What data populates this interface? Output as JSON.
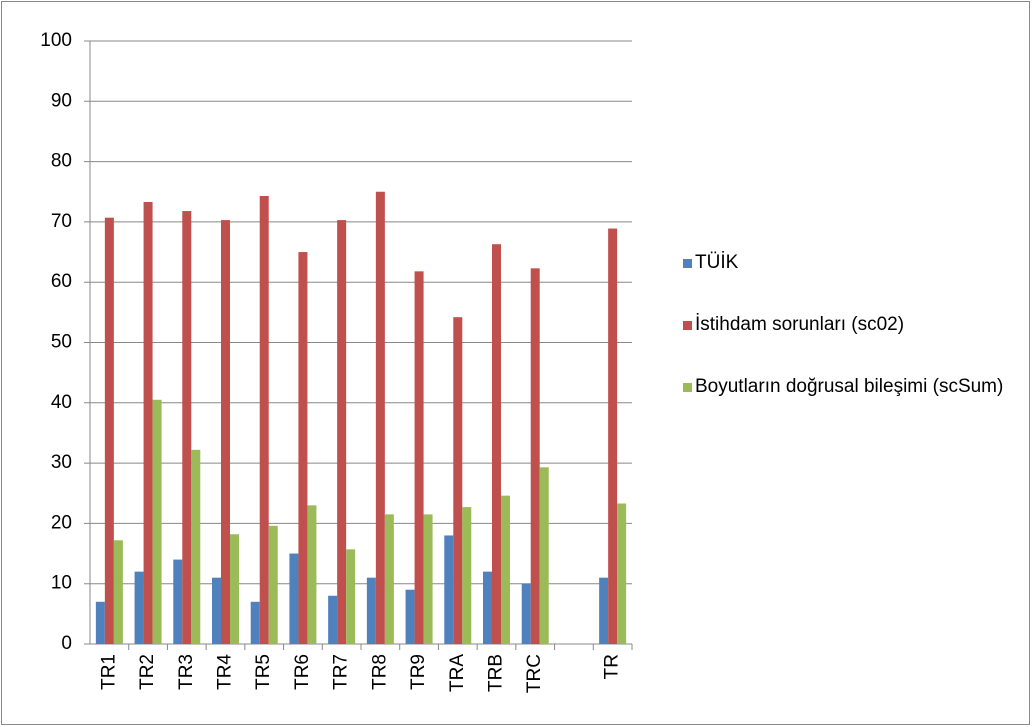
{
  "chart_data": {
    "type": "bar",
    "categories": [
      "TR1",
      "TR2",
      "TR3",
      "TR4",
      "TR5",
      "TR6",
      "TR7",
      "TR8",
      "TR9",
      "TRA",
      "TRB",
      "TRC",
      null,
      "TR"
    ],
    "series": [
      {
        "name": "TÜİK",
        "color": "#4f81bd",
        "values": [
          7,
          12,
          14,
          11,
          7,
          15,
          8,
          11,
          9,
          18,
          12,
          10,
          null,
          11
        ]
      },
      {
        "name": "İstihdam sorunları (sc02)",
        "color": "#c0504d",
        "values": [
          70.7,
          73.3,
          71.8,
          70.3,
          74.3,
          65,
          70.3,
          75,
          61.8,
          54.2,
          66.3,
          62.3,
          null,
          68.9
        ]
      },
      {
        "name": "Boyutların doğrusal bileşimi (scSum)",
        "color": "#9bbb59",
        "values": [
          17.2,
          40.5,
          32.2,
          18.2,
          19.6,
          23,
          15.7,
          21.5,
          21.5,
          22.7,
          24.6,
          29.3,
          null,
          23.3
        ]
      }
    ],
    "ylim": [
      0,
      100
    ],
    "yticks": [
      0,
      10,
      20,
      30,
      40,
      50,
      60,
      70,
      80,
      90,
      100
    ],
    "grid": true,
    "legend": "right"
  }
}
